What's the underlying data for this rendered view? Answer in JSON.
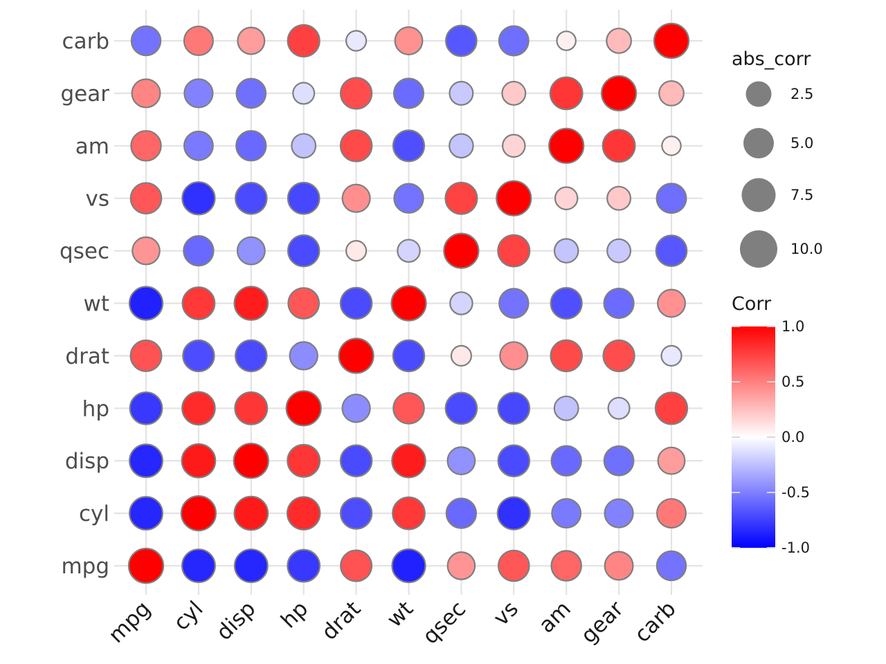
{
  "chart_data": {
    "type": "heatmap",
    "subtype": "correlation-bubble",
    "variables": [
      "mpg",
      "cyl",
      "disp",
      "hp",
      "drat",
      "wt",
      "qsec",
      "vs",
      "am",
      "gear",
      "carb"
    ],
    "matrix": [
      [
        1.0,
        -0.85,
        -0.85,
        -0.78,
        0.68,
        -0.87,
        0.42,
        0.66,
        0.6,
        0.48,
        -0.55
      ],
      [
        -0.85,
        1.0,
        0.9,
        0.83,
        -0.7,
        0.78,
        -0.59,
        -0.81,
        -0.52,
        -0.49,
        0.53
      ],
      [
        -0.85,
        0.9,
        1.0,
        0.79,
        -0.71,
        0.89,
        -0.43,
        -0.71,
        -0.59,
        -0.56,
        0.39
      ],
      [
        -0.78,
        0.83,
        0.79,
        1.0,
        -0.45,
        0.66,
        -0.71,
        -0.72,
        -0.24,
        -0.13,
        0.75
      ],
      [
        0.68,
        -0.7,
        -0.71,
        -0.45,
        1.0,
        -0.71,
        0.09,
        0.44,
        0.71,
        0.7,
        -0.09
      ],
      [
        -0.87,
        0.78,
        0.89,
        0.66,
        -0.71,
        1.0,
        -0.17,
        -0.55,
        -0.69,
        -0.58,
        0.43
      ],
      [
        0.42,
        -0.59,
        -0.43,
        -0.71,
        0.09,
        -0.17,
        1.0,
        0.74,
        -0.23,
        -0.21,
        -0.66
      ],
      [
        0.66,
        -0.81,
        -0.71,
        -0.72,
        0.44,
        -0.55,
        0.74,
        1.0,
        0.17,
        0.21,
        -0.57
      ],
      [
        0.6,
        -0.52,
        -0.59,
        -0.24,
        0.71,
        -0.69,
        -0.23,
        0.17,
        1.0,
        0.79,
        0.06
      ],
      [
        0.48,
        -0.49,
        -0.56,
        -0.13,
        0.7,
        -0.58,
        -0.21,
        0.21,
        0.79,
        1.0,
        0.27
      ],
      [
        -0.55,
        0.53,
        0.39,
        0.75,
        -0.09,
        0.43,
        -0.66,
        -0.57,
        0.06,
        0.27,
        1.0
      ]
    ],
    "fill_scale": {
      "low": "#0000ff",
      "mid": "#ffffff",
      "high": "#ff0000",
      "limits": [
        -1,
        1
      ]
    },
    "legends": {
      "size": {
        "title": "abs_corr",
        "breaks": [
          "2.5",
          "5.0",
          "7.5",
          "10.0"
        ]
      },
      "fill": {
        "title": "Corr",
        "breaks": [
          "1.0",
          "0.5",
          "0.0",
          "-0.5",
          "-1.0"
        ]
      }
    },
    "grid": true,
    "legend_position": "right"
  }
}
